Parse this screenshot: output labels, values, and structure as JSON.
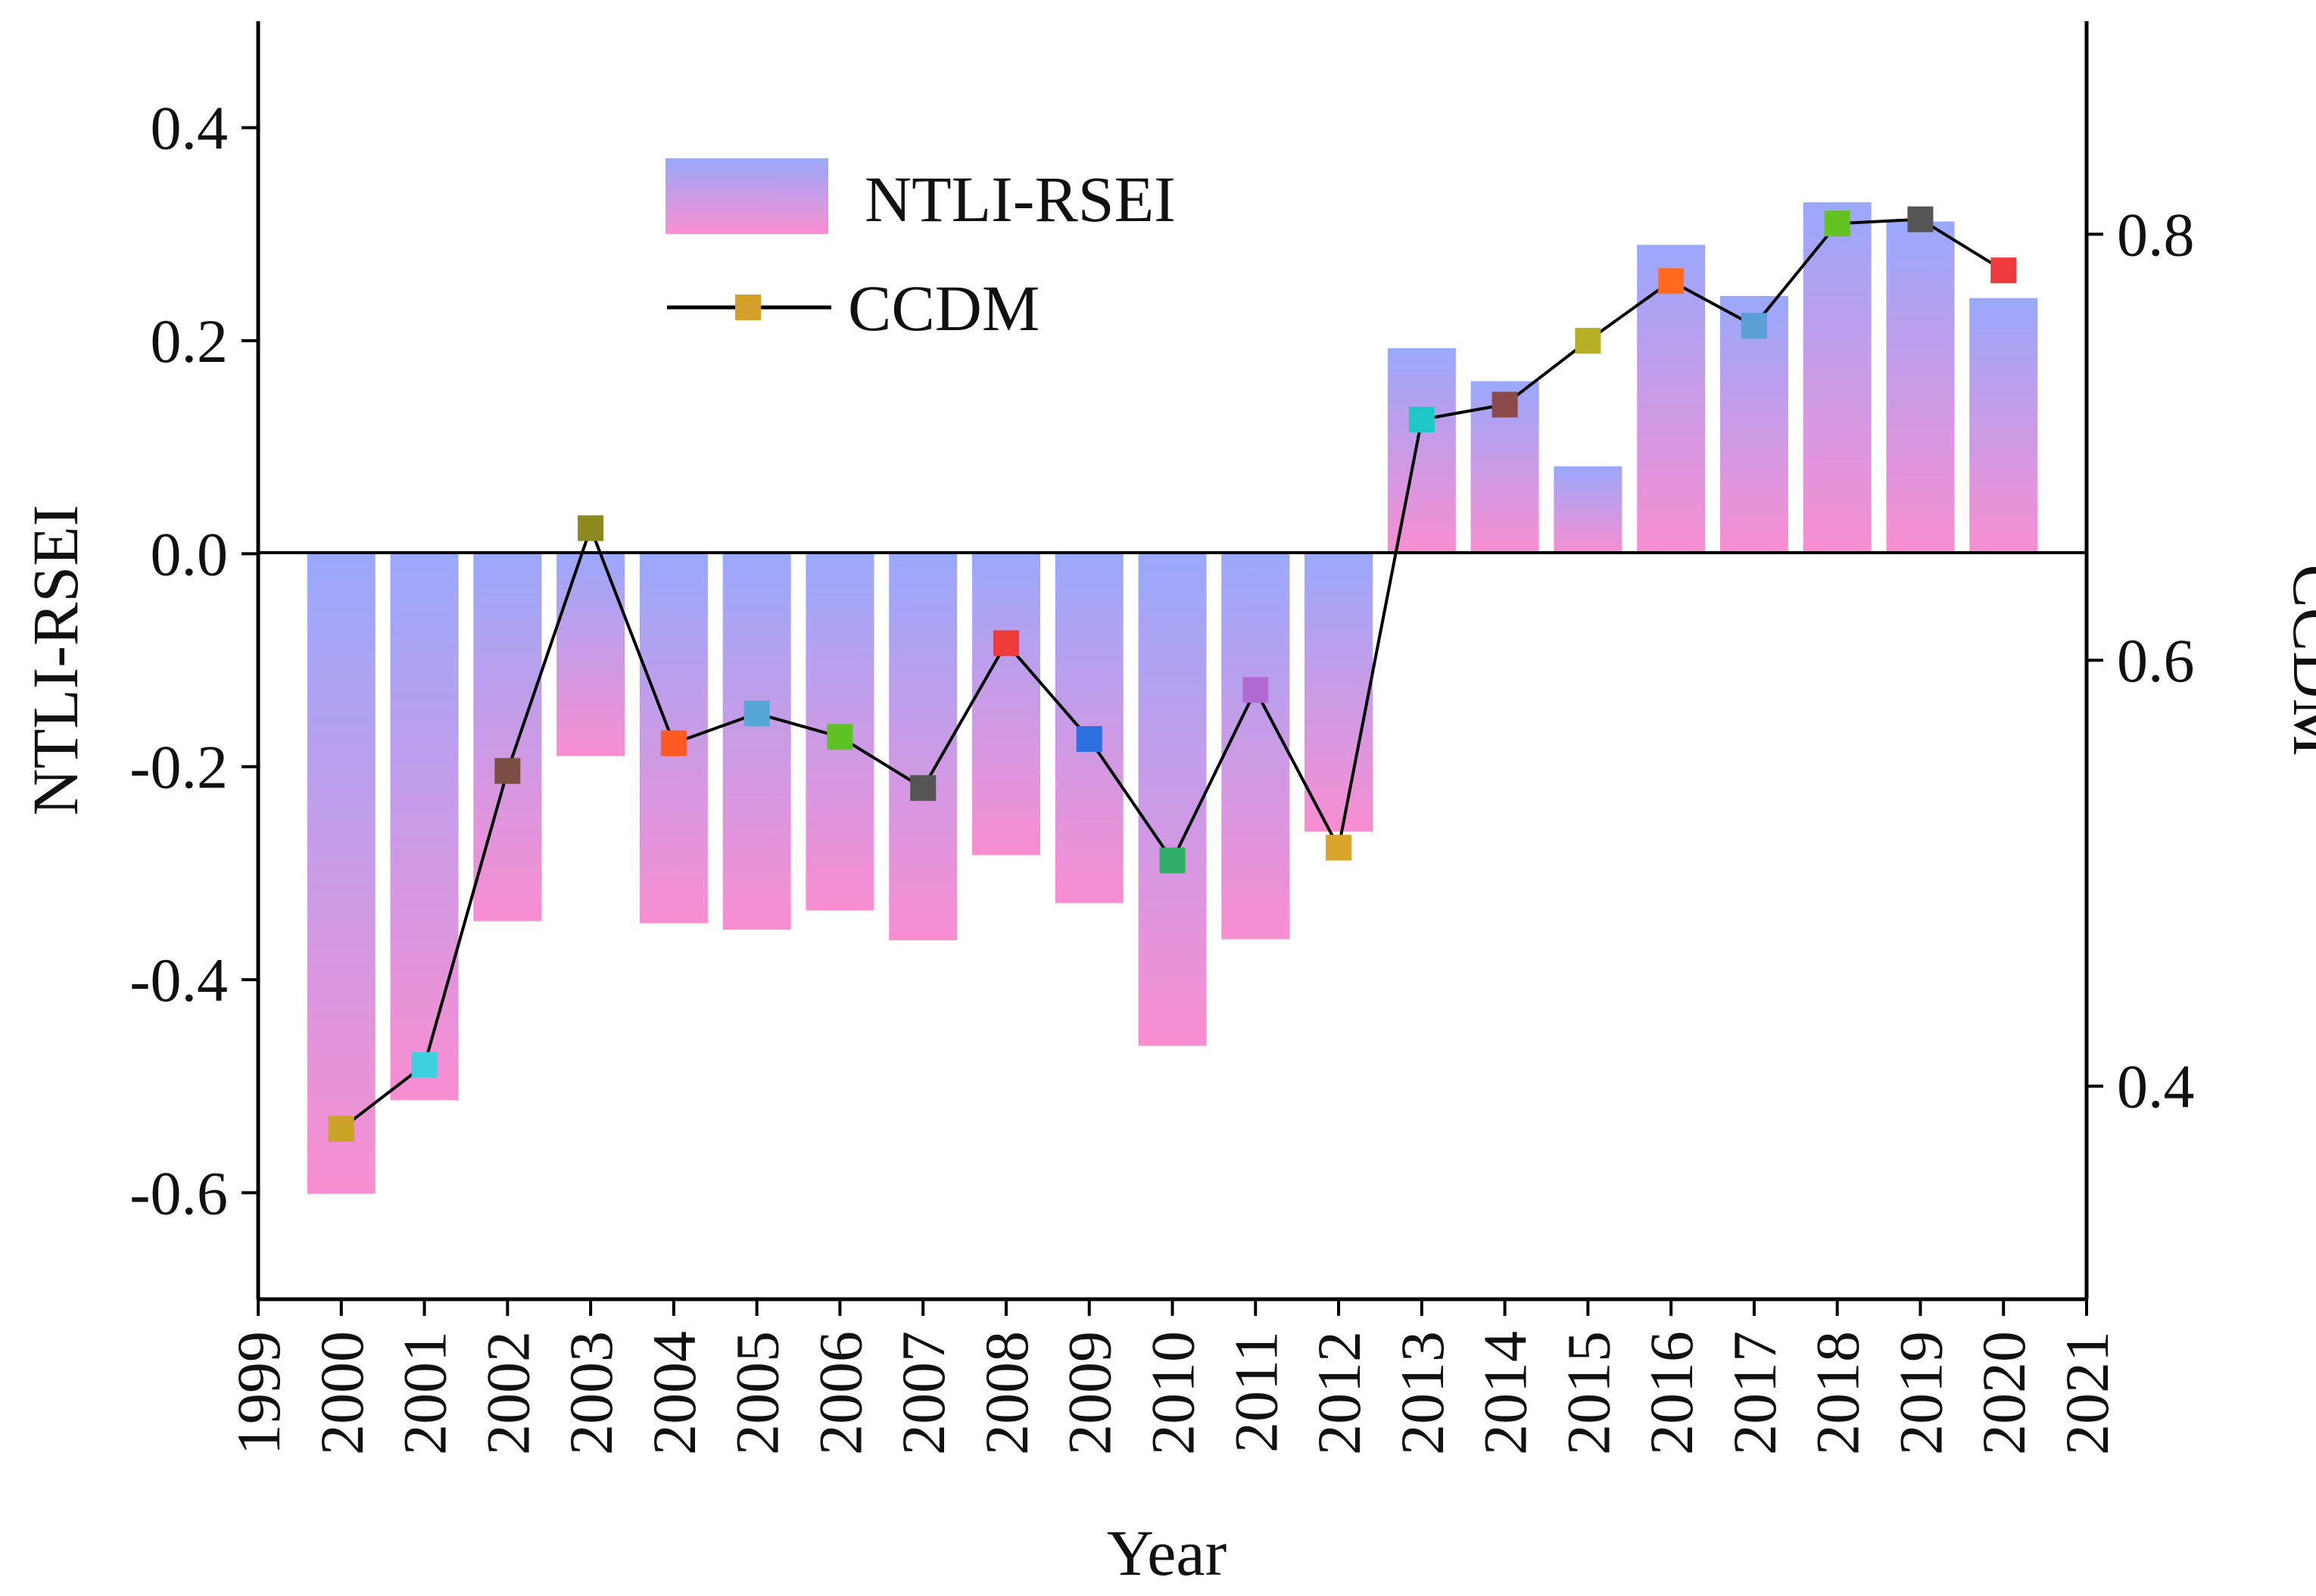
{
  "chart_data": {
    "type": "bar",
    "title": "",
    "xlabel": "Year",
    "ylabel": "NTLI-RSEI",
    "y2label": "CCDM",
    "xlim": [
      1999,
      2021
    ],
    "ylim": [
      -0.7,
      0.5
    ],
    "y2lim": [
      0.3,
      0.9
    ],
    "x_ticks": [
      "1999",
      "2000",
      "2001",
      "2002",
      "2003",
      "2004",
      "2005",
      "2006",
      "2007",
      "2008",
      "2009",
      "2010",
      "2011",
      "2012",
      "2013",
      "2014",
      "2015",
      "2016",
      "2017",
      "2018",
      "2019",
      "2020",
      "2021"
    ],
    "y_ticks": [
      "-0.6",
      "-0.4",
      "-0.2",
      "0.0",
      "0.2",
      "0.4"
    ],
    "y2_ticks": [
      "0.4",
      "0.6",
      "0.8"
    ],
    "categories": [
      "2000",
      "2001",
      "2002",
      "2003",
      "2004",
      "2005",
      "2006",
      "2007",
      "2008",
      "2009",
      "2010",
      "2011",
      "2012",
      "2013",
      "2014",
      "2015",
      "2016",
      "2017",
      "2018",
      "2019",
      "2020"
    ],
    "series": [
      {
        "name": "NTLI-RSEI",
        "type": "bar",
        "axis": "left",
        "colors": [
          "#9aa8fb",
          "#f98ed1"
        ],
        "values": [
          -0.601,
          -0.513,
          -0.345,
          -0.19,
          -0.347,
          -0.353,
          -0.335,
          -0.363,
          -0.283,
          -0.328,
          -0.462,
          -0.362,
          -0.261,
          0.193,
          0.162,
          0.082,
          0.29,
          0.242,
          0.33,
          0.312,
          0.24
        ]
      },
      {
        "name": "CCDM",
        "type": "line",
        "axis": "right",
        "line_color": "#000000",
        "values": [
          0.38,
          0.41,
          0.548,
          0.662,
          0.561,
          0.575,
          0.564,
          0.54,
          0.608,
          0.563,
          0.506,
          0.586,
          0.512,
          0.713,
          0.72,
          0.75,
          0.778,
          0.757,
          0.805,
          0.807,
          0.783
        ],
        "marker_colors": [
          "#c9a227",
          "#3fd0e0",
          "#7a4e45",
          "#8c8a1e",
          "#ff5a22",
          "#56a6d8",
          "#5cc226",
          "#555555",
          "#ee3b3b",
          "#2e6fe0",
          "#31ae68",
          "#b06ad2",
          "#d9a52b",
          "#20c9c9",
          "#8a4a4a",
          "#b5b026",
          "#ff6a1f",
          "#5b9fd6",
          "#63c21f",
          "#555555",
          "#ee3b3b"
        ]
      }
    ],
    "legend": {
      "position": "top-left",
      "entries": [
        "NTLI-RSEI",
        "CCDM"
      ],
      "line_marker_color": "#d4a02a"
    },
    "zero_line": true,
    "grid": false
  }
}
